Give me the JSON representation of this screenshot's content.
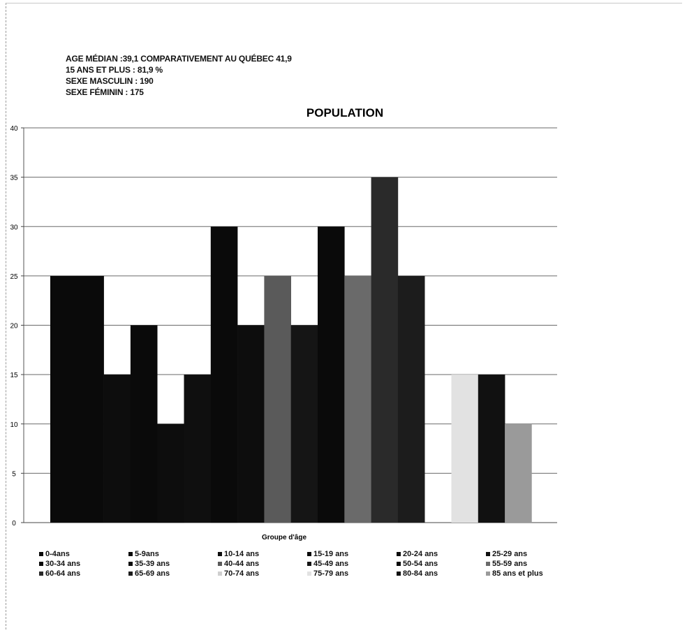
{
  "info": {
    "line1": "AGE MÉDIAN :39,1 COMPARATIVEMENT  AU QUÉBEC 41,9",
    "line2": "15 ANS ET PLUS : 81,9 %",
    "line3": "SEXE MASCULIN : 190",
    "line4": "SEXE  FÉMININ : 175"
  },
  "chart_data": {
    "type": "bar",
    "title": "POPULATION",
    "xlabel": "Groupe d'âge",
    "ylabel": "",
    "ylim": [
      0,
      40
    ],
    "yticks": [
      0,
      5,
      10,
      15,
      20,
      25,
      30,
      35,
      40
    ],
    "grid": true,
    "legend_position": "bottom",
    "series": [
      {
        "name": "0-4ans",
        "value": 25,
        "color": "#0a0a0a"
      },
      {
        "name": "5-9ans",
        "value": 25,
        "color": "#0a0a0a"
      },
      {
        "name": "10-14 ans",
        "value": 15,
        "color": "#0d0d0d"
      },
      {
        "name": "15-19 ans",
        "value": 20,
        "color": "#0a0a0a"
      },
      {
        "name": "20-24 ans",
        "value": 10,
        "color": "#0d0d0d"
      },
      {
        "name": "25-29 ans",
        "value": 15,
        "color": "#0f0f0f"
      },
      {
        "name": "30-34 ans",
        "value": 30,
        "color": "#0a0a0a"
      },
      {
        "name": "35-39 ans",
        "value": 20,
        "color": "#0d0d0d"
      },
      {
        "name": "40-44 ans",
        "value": 25,
        "color": "#5a5a5a"
      },
      {
        "name": "45-49 ans",
        "value": 20,
        "color": "#151515"
      },
      {
        "name": "50-54 ans",
        "value": 30,
        "color": "#0a0a0a"
      },
      {
        "name": "55-59 ans",
        "value": 25,
        "color": "#6a6a6a"
      },
      {
        "name": "60-64 ans",
        "value": 35,
        "color": "#2a2a2a"
      },
      {
        "name": "65-69 ans",
        "value": 25,
        "color": "#1c1c1c"
      },
      {
        "name": "70-74 ans",
        "value": 0,
        "color": "#cfcfcf"
      },
      {
        "name": "75-79 ans",
        "value": 15,
        "color": "#e2e2e2"
      },
      {
        "name": "80-84 ans",
        "value": 15,
        "color": "#111111"
      },
      {
        "name": "85 ans et plus",
        "value": 10,
        "color": "#9a9a9a"
      }
    ]
  }
}
